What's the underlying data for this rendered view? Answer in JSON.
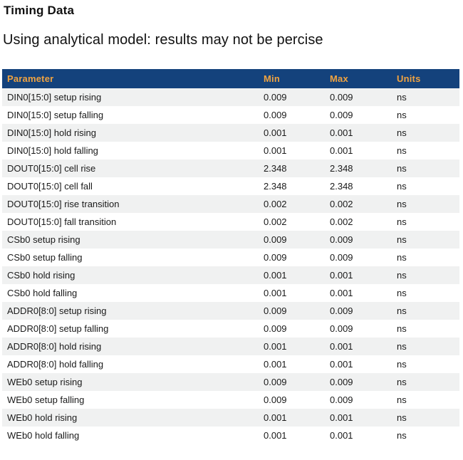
{
  "page": {
    "title": "Timing Data",
    "subtitle": "Using analytical model: results may not be percise"
  },
  "table": {
    "columns": [
      "Parameter",
      "Min",
      "Max",
      "Units"
    ],
    "rows": [
      {
        "parameter": "DIN0[15:0] setup rising",
        "min": "0.009",
        "max": "0.009",
        "units": "ns"
      },
      {
        "parameter": "DIN0[15:0] setup falling",
        "min": "0.009",
        "max": "0.009",
        "units": "ns"
      },
      {
        "parameter": "DIN0[15:0] hold rising",
        "min": "0.001",
        "max": "0.001",
        "units": "ns"
      },
      {
        "parameter": "DIN0[15:0] hold falling",
        "min": "0.001",
        "max": "0.001",
        "units": "ns"
      },
      {
        "parameter": "DOUT0[15:0] cell rise",
        "min": "2.348",
        "max": "2.348",
        "units": "ns"
      },
      {
        "parameter": "DOUT0[15:0] cell fall",
        "min": "2.348",
        "max": "2.348",
        "units": "ns"
      },
      {
        "parameter": "DOUT0[15:0] rise transition",
        "min": "0.002",
        "max": "0.002",
        "units": "ns"
      },
      {
        "parameter": "DOUT0[15:0] fall transition",
        "min": "0.002",
        "max": "0.002",
        "units": "ns"
      },
      {
        "parameter": "CSb0 setup rising",
        "min": "0.009",
        "max": "0.009",
        "units": "ns"
      },
      {
        "parameter": "CSb0 setup falling",
        "min": "0.009",
        "max": "0.009",
        "units": "ns"
      },
      {
        "parameter": "CSb0 hold rising",
        "min": "0.001",
        "max": "0.001",
        "units": "ns"
      },
      {
        "parameter": "CSb0 hold falling",
        "min": "0.001",
        "max": "0.001",
        "units": "ns"
      },
      {
        "parameter": "ADDR0[8:0] setup rising",
        "min": "0.009",
        "max": "0.009",
        "units": "ns"
      },
      {
        "parameter": "ADDR0[8:0] setup falling",
        "min": "0.009",
        "max": "0.009",
        "units": "ns"
      },
      {
        "parameter": "ADDR0[8:0] hold rising",
        "min": "0.001",
        "max": "0.001",
        "units": "ns"
      },
      {
        "parameter": "ADDR0[8:0] hold falling",
        "min": "0.001",
        "max": "0.001",
        "units": "ns"
      },
      {
        "parameter": "WEb0 setup rising",
        "min": "0.009",
        "max": "0.009",
        "units": "ns"
      },
      {
        "parameter": "WEb0 setup falling",
        "min": "0.009",
        "max": "0.009",
        "units": "ns"
      },
      {
        "parameter": "WEb0 hold rising",
        "min": "0.001",
        "max": "0.001",
        "units": "ns"
      },
      {
        "parameter": "WEb0 hold falling",
        "min": "0.001",
        "max": "0.001",
        "units": "ns"
      }
    ]
  },
  "colors": {
    "header_bg": "#14427C",
    "header_text": "#F0A341",
    "stripe_bg": "#F0F1F1",
    "body_text": "#1A1A1A"
  }
}
